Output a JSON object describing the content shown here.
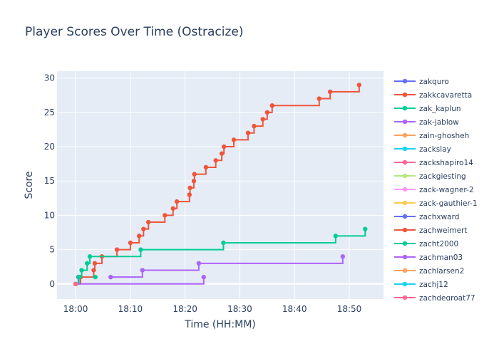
{
  "chart_data": {
    "type": "line",
    "line_shape": "step (hv)",
    "markers": true,
    "title": "Player Scores Over Time (Ostracize)",
    "xlabel": "Time (HH:MM)",
    "ylabel": "Score",
    "x_ticks": [
      "18:00",
      "18:10",
      "18:20",
      "18:30",
      "18:40",
      "18:50"
    ],
    "y_ticks": [
      0,
      5,
      10,
      15,
      20,
      25,
      30
    ],
    "xlim": [
      "17:56:36",
      "18:56:15"
    ],
    "ylim": [
      -2.2,
      31
    ],
    "grid": true,
    "legend_placement": "right",
    "plot_bg": "#e5ecf6",
    "series": [
      {
        "name": "zakquro",
        "color": "#636efa",
        "points": [
          [
            "18:00:00",
            0
          ],
          [
            "18:00:30",
            1
          ]
        ]
      },
      {
        "name": "zakkcavaretta",
        "color": "#EF553B",
        "points": [
          [
            "18:00:00",
            0
          ],
          [
            "18:00:54",
            1
          ],
          [
            "18:03:18",
            2
          ],
          [
            "18:03:30",
            3
          ],
          [
            "18:04:48",
            4
          ],
          [
            "18:07:33",
            5
          ],
          [
            "18:10:00",
            6
          ],
          [
            "18:11:36",
            7
          ],
          [
            "18:12:24",
            8
          ],
          [
            "18:13:18",
            9
          ],
          [
            "18:16:18",
            10
          ],
          [
            "18:17:48",
            11
          ],
          [
            "18:18:30",
            12
          ],
          [
            "18:20:48",
            13
          ],
          [
            "18:20:54",
            14
          ],
          [
            "18:21:36",
            15
          ],
          [
            "18:21:42",
            16
          ],
          [
            "18:23:48",
            17
          ],
          [
            "18:25:36",
            18
          ],
          [
            "18:26:42",
            19
          ],
          [
            "18:27:06",
            20
          ],
          [
            "18:28:54",
            21
          ],
          [
            "18:31:30",
            22
          ],
          [
            "18:32:36",
            23
          ],
          [
            "18:34:12",
            24
          ],
          [
            "18:35:00",
            25
          ],
          [
            "18:35:54",
            26
          ],
          [
            "18:44:30",
            27
          ],
          [
            "18:46:30",
            28
          ],
          [
            "18:51:48",
            29
          ]
        ]
      },
      {
        "name": "zak_kaplun",
        "color": "#00cc96",
        "points": [
          [
            "18:00:00",
            0
          ],
          [
            "18:00:36",
            1
          ],
          [
            "18:01:06",
            2
          ],
          [
            "18:02:06",
            3
          ],
          [
            "18:02:36",
            4
          ],
          [
            "18:11:54",
            5
          ],
          [
            "18:27:00",
            6
          ],
          [
            "18:47:30",
            7
          ],
          [
            "18:52:54",
            8
          ]
        ]
      },
      {
        "name": "zak-jablow",
        "color": "#ab63fa",
        "points": [
          [
            "18:00:00",
            0
          ],
          [
            "18:23:24",
            1
          ]
        ]
      },
      {
        "name": "zain-ghosheh",
        "color": "#FFA15A",
        "points": [
          [
            "18:00:00",
            0
          ]
        ]
      },
      {
        "name": "zackslay",
        "color": "#19d3f3",
        "points": [
          [
            "18:00:00",
            0
          ]
        ]
      },
      {
        "name": "zackshapiro14",
        "color": "#FF6692",
        "points": [
          [
            "18:00:00",
            0
          ]
        ]
      },
      {
        "name": "zackgiesting",
        "color": "#B6E880",
        "points": [
          [
            "18:00:00",
            0
          ]
        ]
      },
      {
        "name": "zack-wagner-2",
        "color": "#FF97FF",
        "points": [
          [
            "18:00:00",
            0
          ]
        ]
      },
      {
        "name": "zack-gauthier-1",
        "color": "#FECB52",
        "points": [
          [
            "18:00:00",
            0
          ]
        ]
      },
      {
        "name": "zachxward",
        "color": "#636efa",
        "points": [
          [
            "18:00:00",
            0
          ]
        ]
      },
      {
        "name": "zachweimert",
        "color": "#EF553B",
        "points": [
          [
            "18:00:00",
            0
          ]
        ]
      },
      {
        "name": "zacht2000",
        "color": "#00cc96",
        "points": [
          [
            "18:03:36",
            1
          ]
        ]
      },
      {
        "name": "zachman03",
        "color": "#ab63fa",
        "points": [
          [
            "18:06:24",
            1
          ],
          [
            "18:12:12",
            2
          ],
          [
            "18:22:30",
            3
          ],
          [
            "18:48:48",
            4
          ]
        ]
      },
      {
        "name": "zachlarsen2",
        "color": "#FFA15A",
        "points": [
          [
            "18:00:00",
            0
          ]
        ]
      },
      {
        "name": "zachj12",
        "color": "#19d3f3",
        "points": [
          [
            "18:00:00",
            0
          ]
        ]
      },
      {
        "name": "zachdegroat77",
        "color": "#FF6692",
        "points": [
          [
            "18:00:00",
            0
          ]
        ]
      }
    ]
  }
}
